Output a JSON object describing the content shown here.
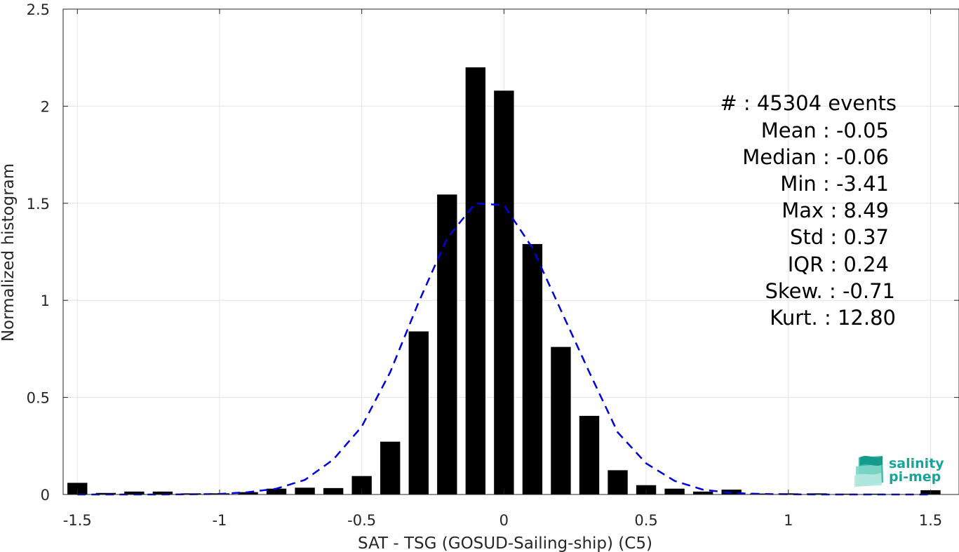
{
  "chart_data": {
    "type": "bar",
    "xlabel": "SAT - TSG (GOSUD-Sailing-ship) (C5)",
    "ylabel": "Normalized histogram",
    "xlim": [
      -1.55,
      1.6
    ],
    "ylim": [
      0,
      2.5
    ],
    "grid": true,
    "bar_width": 0.07,
    "xticks": [
      -1.5,
      -1,
      -0.5,
      0,
      0.5,
      1,
      1.5
    ],
    "xtick_labels": [
      "-1.5",
      "-1",
      "-0.5",
      "0",
      "0.5",
      "1",
      "1.5"
    ],
    "yticks": [
      0,
      0.5,
      1,
      1.5,
      2,
      2.5
    ],
    "ytick_labels": [
      "0",
      "0.5",
      "1",
      "1.5",
      "2",
      "2.5"
    ],
    "bar_color": "#000000",
    "fit_color": "#0000dd",
    "series": [
      {
        "type": "bar",
        "x": [
          -1.5,
          -1.4,
          -1.3,
          -1.2,
          -1.1,
          -1.0,
          -0.9,
          -0.8,
          -0.7,
          -0.6,
          -0.5,
          -0.4,
          -0.3,
          -0.2,
          -0.1,
          0.0,
          0.1,
          0.2,
          0.3,
          0.4,
          0.5,
          0.6,
          0.7,
          0.8,
          0.9,
          1.0,
          1.1,
          1.2,
          1.3,
          1.4,
          1.5
        ],
        "values": [
          0.06,
          0.008,
          0.015,
          0.015,
          0.006,
          0.006,
          0.012,
          0.03,
          0.035,
          0.033,
          0.095,
          0.272,
          0.84,
          1.545,
          2.2,
          2.08,
          1.29,
          0.76,
          0.405,
          0.125,
          0.048,
          0.03,
          0.015,
          0.025,
          0.005,
          0.006,
          0.006,
          0.004,
          0.004,
          0.002,
          0.022
        ]
      },
      {
        "type": "line",
        "style": "dashed",
        "x": [
          -1.5,
          -1.4,
          -1.3,
          -1.2,
          -1.1,
          -1.0,
          -0.9,
          -0.8,
          -0.7,
          -0.6,
          -0.5,
          -0.4,
          -0.3,
          -0.2,
          -0.1,
          0.0,
          0.1,
          0.2,
          0.3,
          0.4,
          0.5,
          0.6,
          0.7,
          0.8,
          0.9,
          1.0,
          1.1,
          1.2,
          1.3,
          1.4,
          1.5
        ],
        "values": [
          0.0,
          0.0,
          0.0,
          0.0,
          0.001,
          0.003,
          0.012,
          0.03,
          0.075,
          0.18,
          0.35,
          0.63,
          0.99,
          1.32,
          1.5,
          1.49,
          1.27,
          0.95,
          0.63,
          0.32,
          0.16,
          0.07,
          0.025,
          0.008,
          0.003,
          0.001,
          0.0,
          0.0,
          0.0,
          0.0,
          0.0
        ]
      }
    ]
  },
  "stats": {
    "count": "#  : 45304 events",
    "mean": "Mean : -0.05",
    "median": "Median : -0.06",
    "min": "Min : -3.41",
    "max": "Max : 8.49",
    "std": "Std : 0.37",
    "iqr": "IQR : 0.24",
    "skew": "Skew. : -0.71",
    "kurt": "Kurt. : 12.80"
  },
  "logo": {
    "line1": "salinity",
    "line2": "pi-mep",
    "color": "#1aa39a"
  }
}
